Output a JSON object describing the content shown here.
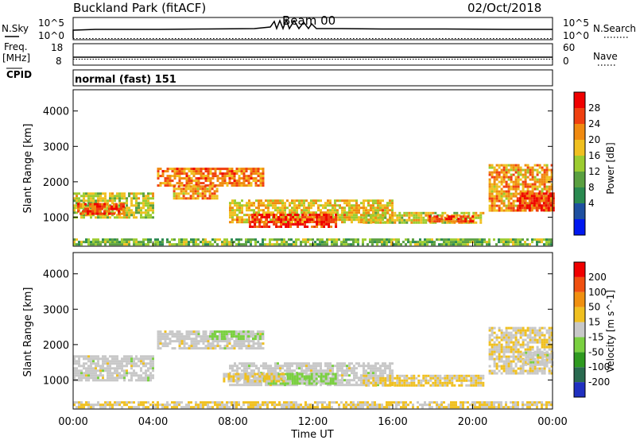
{
  "header": {
    "radar": "Buckland Park (fitACF)",
    "beam": "Beam 00",
    "date": "02/Oct/2018"
  },
  "strips": {
    "nsky_label": "N.Sky",
    "nsky_ticks": [
      "10^5",
      "10^0"
    ],
    "nsearch_label": "N.Search",
    "nsearch_ticks": [
      "10^5",
      "10^0"
    ],
    "freq_label": "Freq.",
    "freq_unit": "[MHz]",
    "freq_ticks": [
      "18",
      "8"
    ],
    "nave_label": "Nave",
    "nave_ticks": [
      "60",
      "0"
    ],
    "cpid_label": "CPID",
    "cpid_value": "normal (fast) 151"
  },
  "x_axis": {
    "label": "Time UT",
    "ticks": [
      "00:00",
      "04:00",
      "08:00",
      "12:00",
      "16:00",
      "20:00",
      "00:00"
    ]
  },
  "colors": {
    "power": [
      "#0018f0",
      "#1e50a0",
      "#2a8a50",
      "#5aa040",
      "#9ccc30",
      "#f0c020",
      "#f08a10",
      "#f04010",
      "#f00000"
    ],
    "velocity": [
      "#2030c0",
      "#2a6a50",
      "#2f9a20",
      "#7ad040",
      "#c8c8c8",
      "#f0c020",
      "#f09010",
      "#f05010",
      "#f00000"
    ]
  },
  "chart_data": [
    {
      "type": "heatmap",
      "panel": "power",
      "ylabel": "Slant Range [km]",
      "xlabel": "Time UT",
      "xlim": [
        0,
        24
      ],
      "ylim": [
        180,
        4600
      ],
      "yticks": [
        1000,
        2000,
        3000,
        4000
      ],
      "colorbar_label": "Power [dB]",
      "colorbar_ticks": [
        "28",
        "24",
        "20",
        "16",
        "12",
        "8",
        "4"
      ],
      "colorbar_range": [
        0,
        32
      ],
      "regions": [
        {
          "t0": 0.0,
          "t1": 24.0,
          "r0": 200,
          "r1": 400,
          "level": 14
        },
        {
          "t0": 0.0,
          "t1": 4.0,
          "r0": 1000,
          "r1": 1700,
          "level": 17
        },
        {
          "t0": 0.2,
          "t1": 2.5,
          "r0": 1100,
          "r1": 1400,
          "level": 26
        },
        {
          "t0": 4.2,
          "t1": 9.5,
          "r0": 1900,
          "r1": 2400,
          "level": 24
        },
        {
          "t0": 5.0,
          "t1": 7.2,
          "r0": 1500,
          "r1": 1900,
          "level": 22
        },
        {
          "t0": 7.8,
          "t1": 16.0,
          "r0": 850,
          "r1": 1500,
          "level": 20
        },
        {
          "t0": 8.8,
          "t1": 13.2,
          "r0": 700,
          "r1": 1100,
          "level": 28
        },
        {
          "t0": 14.5,
          "t1": 20.5,
          "r0": 850,
          "r1": 1150,
          "level": 18
        },
        {
          "t0": 17.8,
          "t1": 20.0,
          "r0": 900,
          "r1": 1050,
          "level": 26
        },
        {
          "t0": 20.8,
          "t1": 24.0,
          "r0": 1200,
          "r1": 2500,
          "level": 22
        },
        {
          "t0": 22.2,
          "t1": 24.0,
          "r0": 1200,
          "r1": 1700,
          "level": 28
        }
      ]
    },
    {
      "type": "heatmap",
      "panel": "velocity",
      "ylabel": "Slant Range [km]",
      "xlabel": "Time UT",
      "xlim": [
        0,
        24
      ],
      "ylim": [
        180,
        4600
      ],
      "yticks": [
        1000,
        2000,
        3000,
        4000
      ],
      "colorbar_label": "Velocity [m s^-1]",
      "colorbar_ticks": [
        "200",
        "100",
        "50",
        "15",
        "-15",
        "-50",
        "-100",
        "-200"
      ],
      "colorbar_range": [
        -250,
        250
      ],
      "regions": [
        {
          "t0": 0.0,
          "t1": 24.0,
          "r0": 200,
          "r1": 400,
          "level": 30
        },
        {
          "t0": 0.0,
          "t1": 4.0,
          "r0": 1000,
          "r1": 1700,
          "level": 0
        },
        {
          "t0": 4.2,
          "t1": 9.5,
          "r0": 1900,
          "r1": 2400,
          "level": 0
        },
        {
          "t0": 6.8,
          "t1": 9.5,
          "r0": 2150,
          "r1": 2400,
          "level": -40
        },
        {
          "t0": 7.8,
          "t1": 16.0,
          "r0": 850,
          "r1": 1500,
          "level": 0
        },
        {
          "t0": 9.5,
          "t1": 13.2,
          "r0": 900,
          "r1": 1200,
          "level": -45
        },
        {
          "t0": 7.5,
          "t1": 10.5,
          "r0": 950,
          "r1": 1200,
          "level": 35
        },
        {
          "t0": 14.5,
          "t1": 20.5,
          "r0": 850,
          "r1": 1150,
          "level": 30
        },
        {
          "t0": 20.8,
          "t1": 24.0,
          "r0": 1200,
          "r1": 2500,
          "level": 20
        },
        {
          "t0": 22.5,
          "t1": 24.0,
          "r0": 1400,
          "r1": 1800,
          "level": 0
        }
      ]
    }
  ]
}
